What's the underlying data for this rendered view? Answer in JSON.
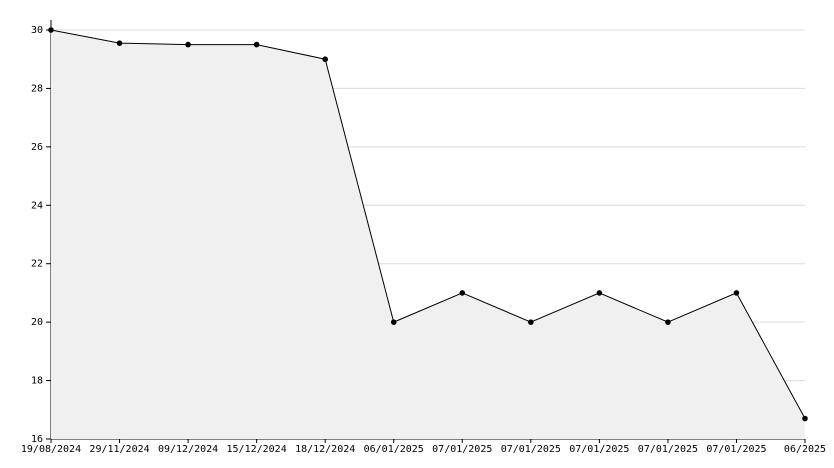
{
  "chart_data": {
    "type": "area",
    "categories": [
      "19/08/2024",
      "29/11/2024",
      "09/12/2024",
      "15/12/2024",
      "18/12/2024",
      "06/01/2025",
      "07/01/2025",
      "07/01/2025",
      "07/01/2025",
      "07/01/2025",
      "07/01/2025",
      "06/2025"
    ],
    "values": [
      30,
      29.55,
      29.5,
      29.5,
      29,
      20,
      21,
      20,
      21,
      20,
      21,
      16.7
    ],
    "color": "#000000",
    "fill": "#f0f0f0",
    "ylim": [
      16,
      30
    ],
    "yticks": [
      16,
      18,
      20,
      22,
      24,
      26,
      28,
      30
    ],
    "grid": true
  }
}
